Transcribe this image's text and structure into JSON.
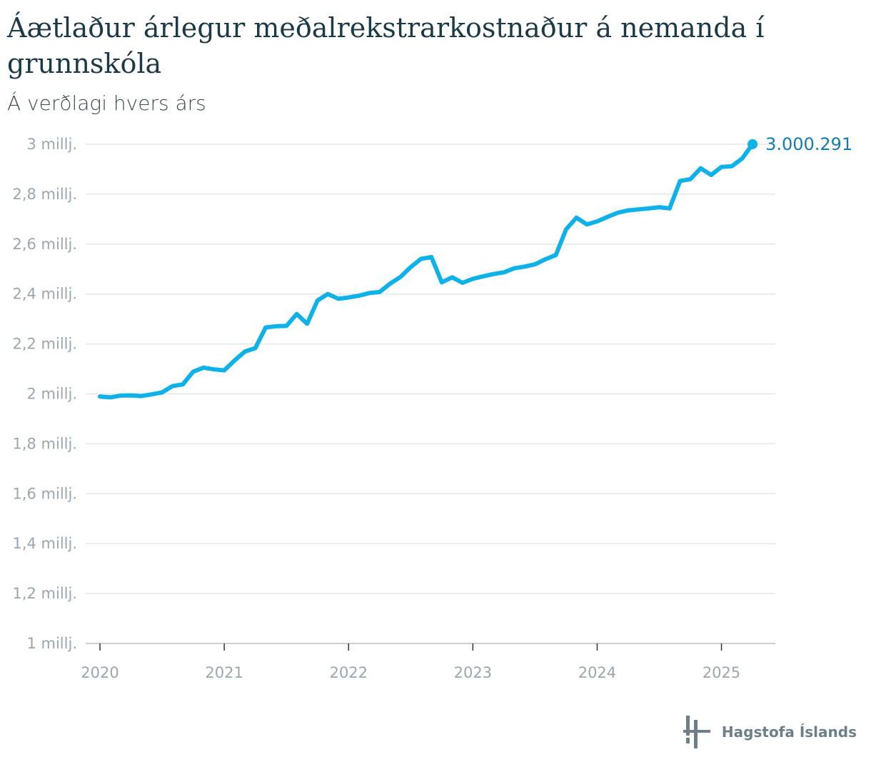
{
  "header": {
    "title": "Áætlaður árlegur meðalrekstrarkostnaður á nemanda í grunnskóla",
    "subtitle": "Á verðlagi hvers árs"
  },
  "brand": {
    "name": "Hagstofa Íslands"
  },
  "colors": {
    "line": "#0eb1e8",
    "grid": "#e4e7ea",
    "label": "#0f7fb0",
    "axis": "#9aa6b0"
  },
  "chart_data": {
    "type": "line",
    "title": "Áætlaður árlegur meðalrekstrarkostnaður á nemanda í grunnskóla",
    "subtitle": "Á verðlagi hvers árs",
    "xlabel": "",
    "ylabel": "",
    "ylim": [
      1000000,
      3000000
    ],
    "xlim": [
      2020.0,
      2025.33
    ],
    "y_ticks": [
      {
        "value": 1000000,
        "label": "1 millj."
      },
      {
        "value": 1200000,
        "label": "1,2 millj."
      },
      {
        "value": 1400000,
        "label": "1,4 millj."
      },
      {
        "value": 1600000,
        "label": "1,6 millj."
      },
      {
        "value": 1800000,
        "label": "1,8 millj."
      },
      {
        "value": 2000000,
        "label": "2 millj."
      },
      {
        "value": 2200000,
        "label": "2,2 millj."
      },
      {
        "value": 2400000,
        "label": "2,4 millj."
      },
      {
        "value": 2600000,
        "label": "2,6 millj."
      },
      {
        "value": 2800000,
        "label": "2,8 millj."
      },
      {
        "value": 3000000,
        "label": "3 millj."
      }
    ],
    "x_ticks": [
      {
        "value": 2020,
        "label": "2020"
      },
      {
        "value": 2021,
        "label": "2021"
      },
      {
        "value": 2022,
        "label": "2022"
      },
      {
        "value": 2023,
        "label": "2023"
      },
      {
        "value": 2024,
        "label": "2024"
      },
      {
        "value": 2025,
        "label": "2025"
      }
    ],
    "end_label": "3.000.291",
    "grid": true,
    "series": [
      {
        "name": "Meðalrekstrarkostnaður á nemanda",
        "x": [
          2020.0,
          2020.083,
          2020.167,
          2020.25,
          2020.333,
          2020.417,
          2020.5,
          2020.583,
          2020.667,
          2020.75,
          2020.833,
          2020.917,
          2021.0,
          2021.083,
          2021.167,
          2021.25,
          2021.333,
          2021.417,
          2021.5,
          2021.583,
          2021.667,
          2021.75,
          2021.833,
          2021.917,
          2022.0,
          2022.083,
          2022.167,
          2022.25,
          2022.333,
          2022.417,
          2022.5,
          2022.583,
          2022.667,
          2022.75,
          2022.833,
          2022.917,
          2023.0,
          2023.083,
          2023.167,
          2023.25,
          2023.333,
          2023.417,
          2023.5,
          2023.583,
          2023.667,
          2023.75,
          2023.833,
          2023.917,
          2024.0,
          2024.083,
          2024.167,
          2024.25,
          2024.333,
          2024.417,
          2024.5,
          2024.583,
          2024.667,
          2024.75,
          2024.833,
          2024.917,
          2025.0,
          2025.083,
          2025.167,
          2025.25
        ],
        "values": [
          1989000,
          1986000,
          1993000,
          1994000,
          1991000,
          1998000,
          2006000,
          2031000,
          2038000,
          2089000,
          2105000,
          2098000,
          2094000,
          2134000,
          2170000,
          2183000,
          2266000,
          2271000,
          2272000,
          2320000,
          2281000,
          2374000,
          2400000,
          2381000,
          2386000,
          2393000,
          2404000,
          2408000,
          2441000,
          2468000,
          2508000,
          2541000,
          2548000,
          2447000,
          2467000,
          2445000,
          2461000,
          2471000,
          2480000,
          2487000,
          2503000,
          2510000,
          2519000,
          2539000,
          2556000,
          2659000,
          2706000,
          2679000,
          2691000,
          2709000,
          2726000,
          2735000,
          2739000,
          2743000,
          2748000,
          2743000,
          2853000,
          2860000,
          2904000,
          2877000,
          2909000,
          2912000,
          2943000,
          3000291
        ]
      }
    ]
  }
}
